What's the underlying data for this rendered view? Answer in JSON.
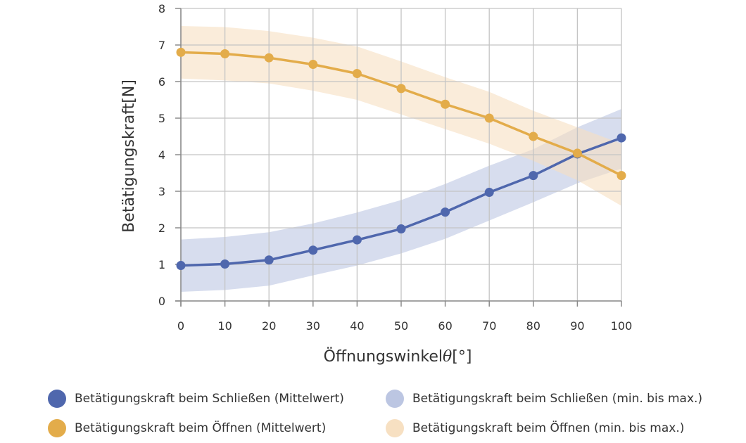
{
  "chart_data": {
    "type": "line",
    "title": "",
    "xlabel": "Öffnungswinkel",
    "xlabel_symbol": "θ",
    "xlabel_unit": "[°]",
    "ylabel": "Betätigungskraft[N]",
    "xlim": [
      0,
      100
    ],
    "ylim": [
      0,
      8
    ],
    "x_ticks": [
      "0",
      "10",
      "20",
      "30",
      "40",
      "50",
      "60",
      "70",
      "80",
      "90",
      "100"
    ],
    "y_ticks": [
      "0",
      "1",
      "2",
      "3",
      "4",
      "5",
      "6",
      "7",
      "8"
    ],
    "grid": true,
    "x": [
      0,
      10,
      20,
      30,
      40,
      50,
      60,
      70,
      80,
      90,
      100
    ],
    "series": [
      {
        "name": "Betätigungskraft beim Schließen (Mittelwert)",
        "color": "#4f67ad",
        "values": [
          0.97,
          1.01,
          1.12,
          1.39,
          1.67,
          1.97,
          2.43,
          2.97,
          3.43,
          4.02,
          4.46
        ],
        "band_name": "Betätigungskraft beim Schließen (min. bis max.)",
        "band_color": "#bcc6e2",
        "min": [
          0.25,
          0.3,
          0.42,
          0.7,
          0.97,
          1.3,
          1.7,
          2.2,
          2.7,
          3.22,
          3.62
        ],
        "max": [
          1.68,
          1.75,
          1.88,
          2.12,
          2.42,
          2.76,
          3.2,
          3.7,
          4.15,
          4.75,
          5.25
        ]
      },
      {
        "name": "Betätigungskraft beim Öffnen (Mittelwert)",
        "color": "#e3ac4a",
        "values": [
          6.8,
          6.76,
          6.65,
          6.47,
          6.22,
          5.81,
          5.38,
          5.0,
          4.5,
          4.04,
          3.43
        ],
        "band_name": "Betätigungskraft beim Öffnen (min. bis max.)",
        "band_color": "#f7e0c2",
        "min": [
          6.08,
          6.03,
          5.95,
          5.75,
          5.5,
          5.1,
          4.7,
          4.3,
          3.83,
          3.3,
          2.6
        ],
        "max": [
          7.52,
          7.49,
          7.38,
          7.2,
          6.96,
          6.55,
          6.12,
          5.72,
          5.2,
          4.75,
          4.3
        ]
      }
    ],
    "legend_position": "bottom"
  },
  "legend": [
    {
      "label": "Betätigungskraft beim Schließen (Mittelwert)",
      "color": "#4f67ad"
    },
    {
      "label": "Betätigungskraft beim Schließen (min. bis max.)",
      "color": "#bcc6e2"
    },
    {
      "label": "Betätigungskraft beim Öffnen (Mittelwert)",
      "color": "#e3ac4a"
    },
    {
      "label": "Betätigungskraft beim Öffnen (min. bis max.)",
      "color": "#f7e0c2"
    }
  ]
}
